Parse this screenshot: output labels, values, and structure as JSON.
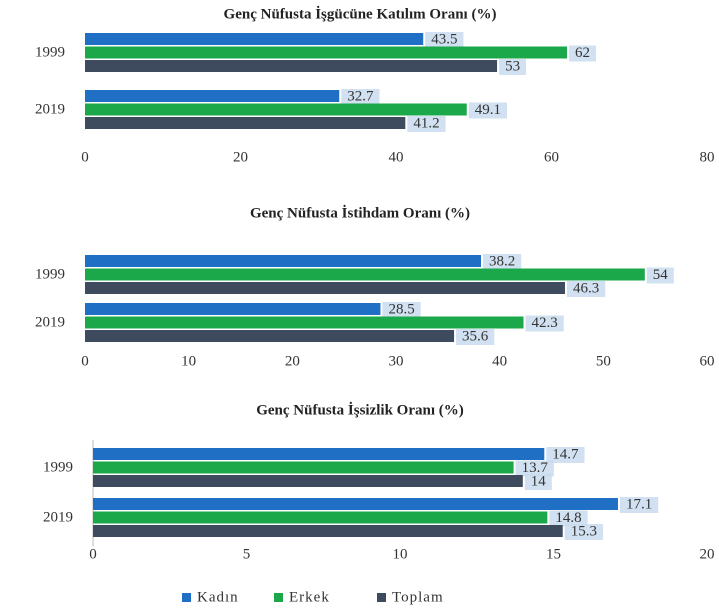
{
  "chart_data": [
    {
      "type": "bar",
      "orientation": "horizontal",
      "title": "Genç Nüfusta İşgücüne Katılım Oranı (%)",
      "categories": [
        "1999",
        "2019"
      ],
      "series": [
        {
          "name": "Kadın",
          "color": "#1f6fc5",
          "values": [
            43.5,
            32.7
          ]
        },
        {
          "name": "Erkek",
          "color": "#1aa84a",
          "values": [
            62,
            49.1
          ]
        },
        {
          "name": "Toplam",
          "color": "#3e4a5d",
          "values": [
            53,
            41.2
          ]
        }
      ],
      "xlim": [
        0,
        80
      ],
      "xticks": [
        0,
        20,
        40,
        60,
        80
      ]
    },
    {
      "type": "bar",
      "orientation": "horizontal",
      "title": "Genç Nüfusta  İstihdam Oranı (%)",
      "categories": [
        "1999",
        "2019"
      ],
      "series": [
        {
          "name": "Kadın",
          "color": "#1f6fc5",
          "values": [
            38.2,
            28.5
          ]
        },
        {
          "name": "Erkek",
          "color": "#1aa84a",
          "values": [
            54,
            42.3
          ]
        },
        {
          "name": "Toplam",
          "color": "#3e4a5d",
          "values": [
            46.3,
            35.6
          ]
        }
      ],
      "xlim": [
        0,
        60
      ],
      "xticks": [
        0,
        10,
        20,
        30,
        40,
        50,
        60
      ]
    },
    {
      "type": "bar",
      "orientation": "horizontal",
      "title": "Genç Nüfusta İşsizlik Oranı (%)",
      "categories": [
        "1999",
        "2019"
      ],
      "series": [
        {
          "name": "Kadın",
          "color": "#1f6fc5",
          "values": [
            14.7,
            17.1
          ]
        },
        {
          "name": "Erkek",
          "color": "#1aa84a",
          "values": [
            13.7,
            14.8
          ]
        },
        {
          "name": "Toplam",
          "color": "#3e4a5d",
          "values": [
            14,
            15.3
          ]
        }
      ],
      "xlim": [
        0,
        20
      ],
      "xticks": [
        0,
        5,
        10,
        15,
        20
      ]
    }
  ]
}
